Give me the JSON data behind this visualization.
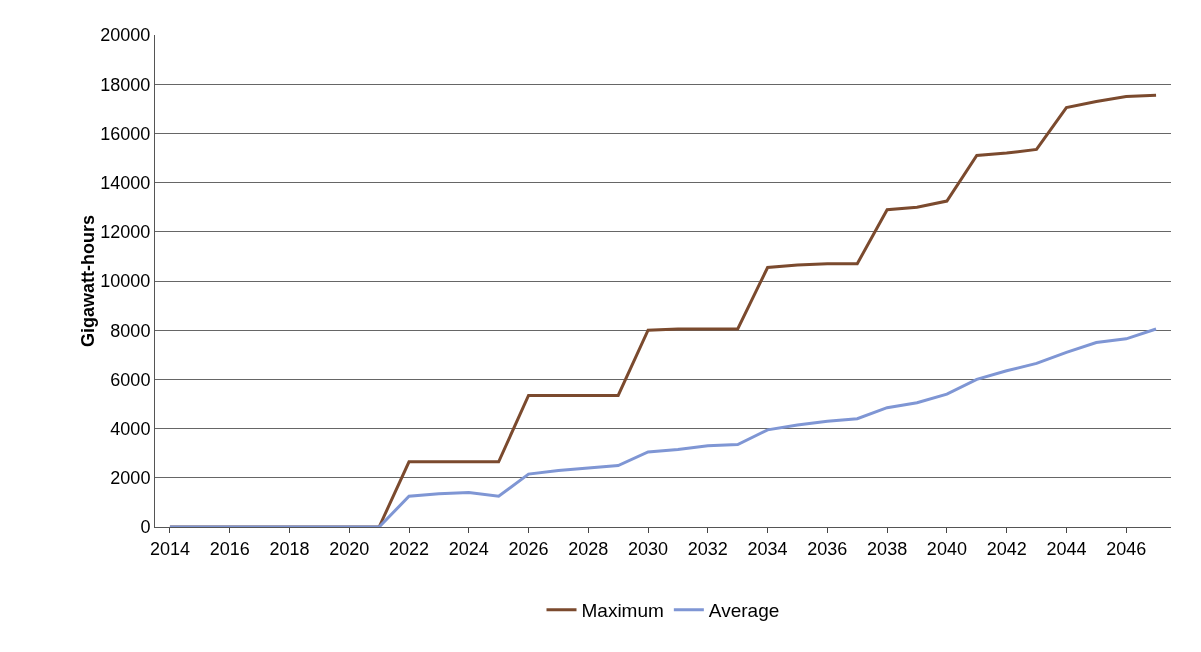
{
  "chart_data": {
    "type": "line",
    "ylabel": "Gigawatt-hours",
    "categories": [
      "2014",
      null,
      "2016",
      null,
      "2018",
      null,
      "2020",
      null,
      "2022",
      null,
      "2024",
      null,
      "2026",
      null,
      "2028",
      null,
      "2030",
      null,
      "2032",
      null,
      "2034",
      null,
      "2036",
      null,
      "2038",
      null,
      "2040",
      null,
      "2042",
      null,
      "2044",
      null,
      "2046",
      null
    ],
    "series": [
      {
        "name": "Maximum",
        "color": "#7b4a2e",
        "values": [
          0,
          0,
          0,
          0,
          0,
          0,
          0,
          0,
          2650,
          2650,
          2650,
          2650,
          5350,
          5350,
          5350,
          5350,
          8000,
          8050,
          8050,
          8050,
          10550,
          10650,
          10700,
          10700,
          12900,
          13000,
          13250,
          15100,
          15200,
          15350,
          17050,
          17300,
          17500,
          17550
        ]
      },
      {
        "name": "Average",
        "color": "#7f96d4",
        "values": [
          0,
          0,
          0,
          0,
          0,
          0,
          0,
          0,
          1250,
          1350,
          1400,
          1250,
          2150,
          2300,
          2400,
          2500,
          3050,
          3150,
          3300,
          3350,
          3950,
          4150,
          4300,
          4400,
          4850,
          5050,
          5400,
          6000,
          6350,
          6650,
          7100,
          7500,
          7650,
          8050
        ]
      }
    ],
    "ylim": [
      0,
      20000
    ],
    "yticks": [
      0,
      2000,
      4000,
      6000,
      8000,
      10000,
      12000,
      14000,
      16000,
      18000,
      20000
    ],
    "grid": "y",
    "legend": "bottom",
    "marker": "none",
    "line_style": "solid"
  }
}
